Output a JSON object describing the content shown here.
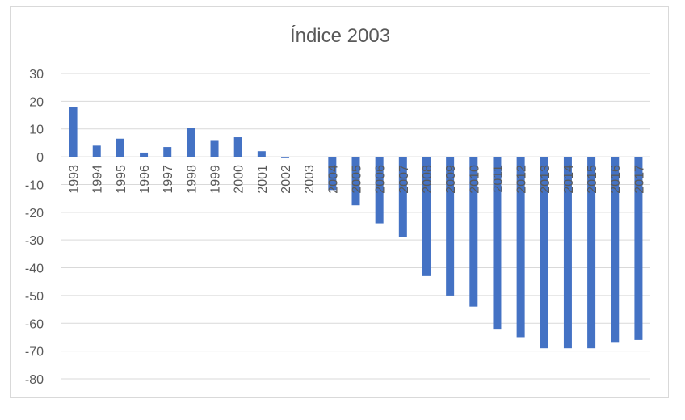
{
  "chart_data": {
    "type": "bar",
    "title": "Índice 2003",
    "xlabel": "",
    "ylabel": "",
    "ylim": [
      -80,
      30
    ],
    "yticks": [
      30,
      20,
      10,
      0,
      -10,
      -20,
      -30,
      -40,
      -50,
      -60,
      -70,
      -80
    ],
    "grid": true,
    "legend": "none",
    "bar_color": "#4472c4",
    "categories": [
      "1993",
      "1994",
      "1995",
      "1996",
      "1997",
      "1998",
      "1999",
      "2000",
      "2001",
      "2002",
      "2003",
      "2004",
      "2005",
      "2006",
      "2007",
      "2008",
      "2009",
      "2010",
      "2011",
      "2012",
      "2013",
      "2014",
      "2015",
      "2016",
      "2017"
    ],
    "values": [
      18,
      4,
      6.5,
      1.5,
      3.5,
      10.5,
      6,
      7,
      2,
      -0.5,
      0,
      -12,
      -17.5,
      -24,
      -29,
      -43,
      -50,
      -54,
      -62,
      -65,
      -69,
      -69,
      -69,
      -67,
      -66
    ]
  }
}
